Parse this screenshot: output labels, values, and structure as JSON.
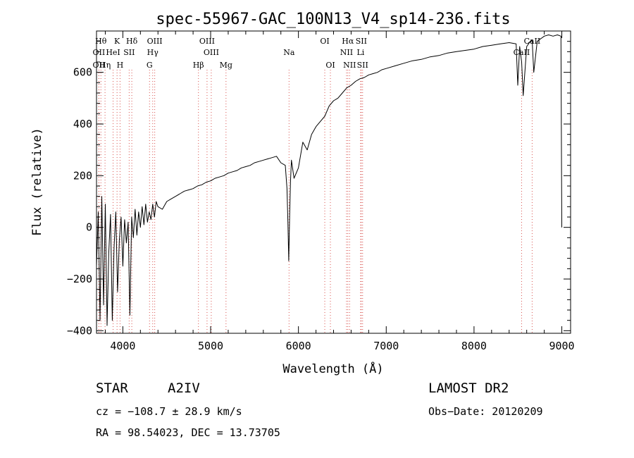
{
  "chart_data": {
    "type": "line",
    "title": "spec-55967-GAC_100N13_V4_sp14-236.fits",
    "xlabel": "Wavelength (Å)",
    "ylabel": "Flux (relative)",
    "xlim": [
      3700,
      9100
    ],
    "ylim": [
      -410,
      760
    ],
    "x_ticks": [
      4000,
      5000,
      6000,
      7000,
      8000,
      9000
    ],
    "y_ticks": [
      -400,
      -200,
      0,
      200,
      400,
      600
    ],
    "grid": false,
    "legend": "none",
    "line_color": "#000000",
    "marker_color": "#d9534f",
    "series": [
      {
        "x": [
          3700,
          3720,
          3740,
          3760,
          3780,
          3800,
          3820,
          3840,
          3860,
          3880,
          3900,
          3920,
          3940,
          3960,
          3980,
          4000,
          4020,
          4040,
          4060,
          4080,
          4100,
          4120,
          4140,
          4160,
          4180,
          4200,
          4220,
          4240,
          4260,
          4280,
          4300,
          4320,
          4340,
          4360,
          4380,
          4400,
          4450,
          4500,
          4550,
          4600,
          4650,
          4700,
          4750,
          4800,
          4850,
          4900,
          4950,
          5000,
          5050,
          5100,
          5150,
          5200,
          5250,
          5300,
          5350,
          5400,
          5450,
          5500,
          5550,
          5600,
          5650,
          5700,
          5750,
          5800,
          5850,
          5870,
          5880,
          5890,
          5900,
          5910,
          5920,
          5950,
          6000,
          6050,
          6100,
          6150,
          6200,
          6250,
          6300,
          6350,
          6400,
          6450,
          6500,
          6550,
          6600,
          6650,
          6700,
          6750,
          6800,
          6850,
          6900,
          6950,
          7000,
          7100,
          7200,
          7300,
          7400,
          7500,
          7600,
          7700,
          7800,
          7900,
          8000,
          8100,
          8200,
          8300,
          8400,
          8480,
          8498,
          8520,
          8542,
          8560,
          8600,
          8640,
          8662,
          8680,
          8720,
          8760,
          8800,
          8850,
          8900,
          8950,
          8990,
          9000
        ],
        "y": [
          -150,
          60,
          -360,
          120,
          -300,
          90,
          -380,
          -100,
          50,
          -360,
          -80,
          60,
          -250,
          -50,
          40,
          -150,
          30,
          -60,
          20,
          -340,
          40,
          -40,
          70,
          -30,
          60,
          0,
          80,
          10,
          90,
          20,
          60,
          30,
          90,
          40,
          100,
          80,
          70,
          100,
          110,
          120,
          130,
          140,
          145,
          150,
          160,
          165,
          175,
          180,
          190,
          195,
          200,
          210,
          215,
          220,
          230,
          235,
          240,
          250,
          255,
          260,
          265,
          270,
          275,
          250,
          240,
          150,
          20,
          -130,
          50,
          180,
          260,
          190,
          230,
          330,
          300,
          360,
          390,
          410,
          430,
          470,
          490,
          500,
          520,
          540,
          550,
          565,
          575,
          580,
          590,
          595,
          600,
          610,
          615,
          625,
          635,
          645,
          650,
          660,
          665,
          675,
          680,
          685,
          690,
          700,
          705,
          710,
          715,
          710,
          550,
          700,
          640,
          510,
          700,
          720,
          725,
          600,
          720,
          730,
          740,
          745,
          740,
          745,
          740,
          0
        ]
      }
    ],
    "line_markers": [
      {
        "x": 3750,
        "label": "Hθ",
        "row": 1
      },
      {
        "x": 3727,
        "label": "OII",
        "row": 2
      },
      {
        "x": 3727,
        "label": "OII",
        "row": 3
      },
      {
        "x": 3797,
        "label": "Hη",
        "row": 3
      },
      {
        "x": 3934,
        "label": "K",
        "row": 1
      },
      {
        "x": 3889,
        "label": "HeI",
        "row": 2
      },
      {
        "x": 3968,
        "label": "H",
        "row": 3
      },
      {
        "x": 4072,
        "label": "SII",
        "row": 2
      },
      {
        "x": 4102,
        "label": "Hδ",
        "row": 1
      },
      {
        "x": 4363,
        "label": "OIII",
        "row": 1
      },
      {
        "x": 4340,
        "label": "Hγ",
        "row": 2
      },
      {
        "x": 4304,
        "label": "G",
        "row": 3
      },
      {
        "x": 4861,
        "label": "Hβ",
        "row": 3
      },
      {
        "x": 4959,
        "label": "OIII",
        "row": 1
      },
      {
        "x": 5007,
        "label": "OIII",
        "row": 2
      },
      {
        "x": 5175,
        "label": "Mg",
        "row": 3
      },
      {
        "x": 5893,
        "label": "Na",
        "row": 2
      },
      {
        "x": 6300,
        "label": "OI",
        "row": 1
      },
      {
        "x": 6364,
        "label": "OI",
        "row": 3
      },
      {
        "x": 6563,
        "label": "Hα",
        "row": 1
      },
      {
        "x": 6548,
        "label": "NII",
        "row": 2
      },
      {
        "x": 6583,
        "label": "NII",
        "row": 3
      },
      {
        "x": 6716,
        "label": "SII",
        "row": 1
      },
      {
        "x": 6708,
        "label": "Li",
        "row": 2
      },
      {
        "x": 6731,
        "label": "SII",
        "row": 3
      },
      {
        "x": 8542,
        "label": "CaII",
        "row": 2
      },
      {
        "x": 8662,
        "label": "CaII",
        "row": 1
      }
    ]
  },
  "info": {
    "object_class": "STAR",
    "subclass": "A2IV",
    "survey": "LAMOST DR2",
    "cz": "cz = −108.7 ± 28.9 km/s",
    "obs_date": "Obs−Date: 20120209",
    "radec": "RA =  98.54023, DEC =  13.73705"
  }
}
